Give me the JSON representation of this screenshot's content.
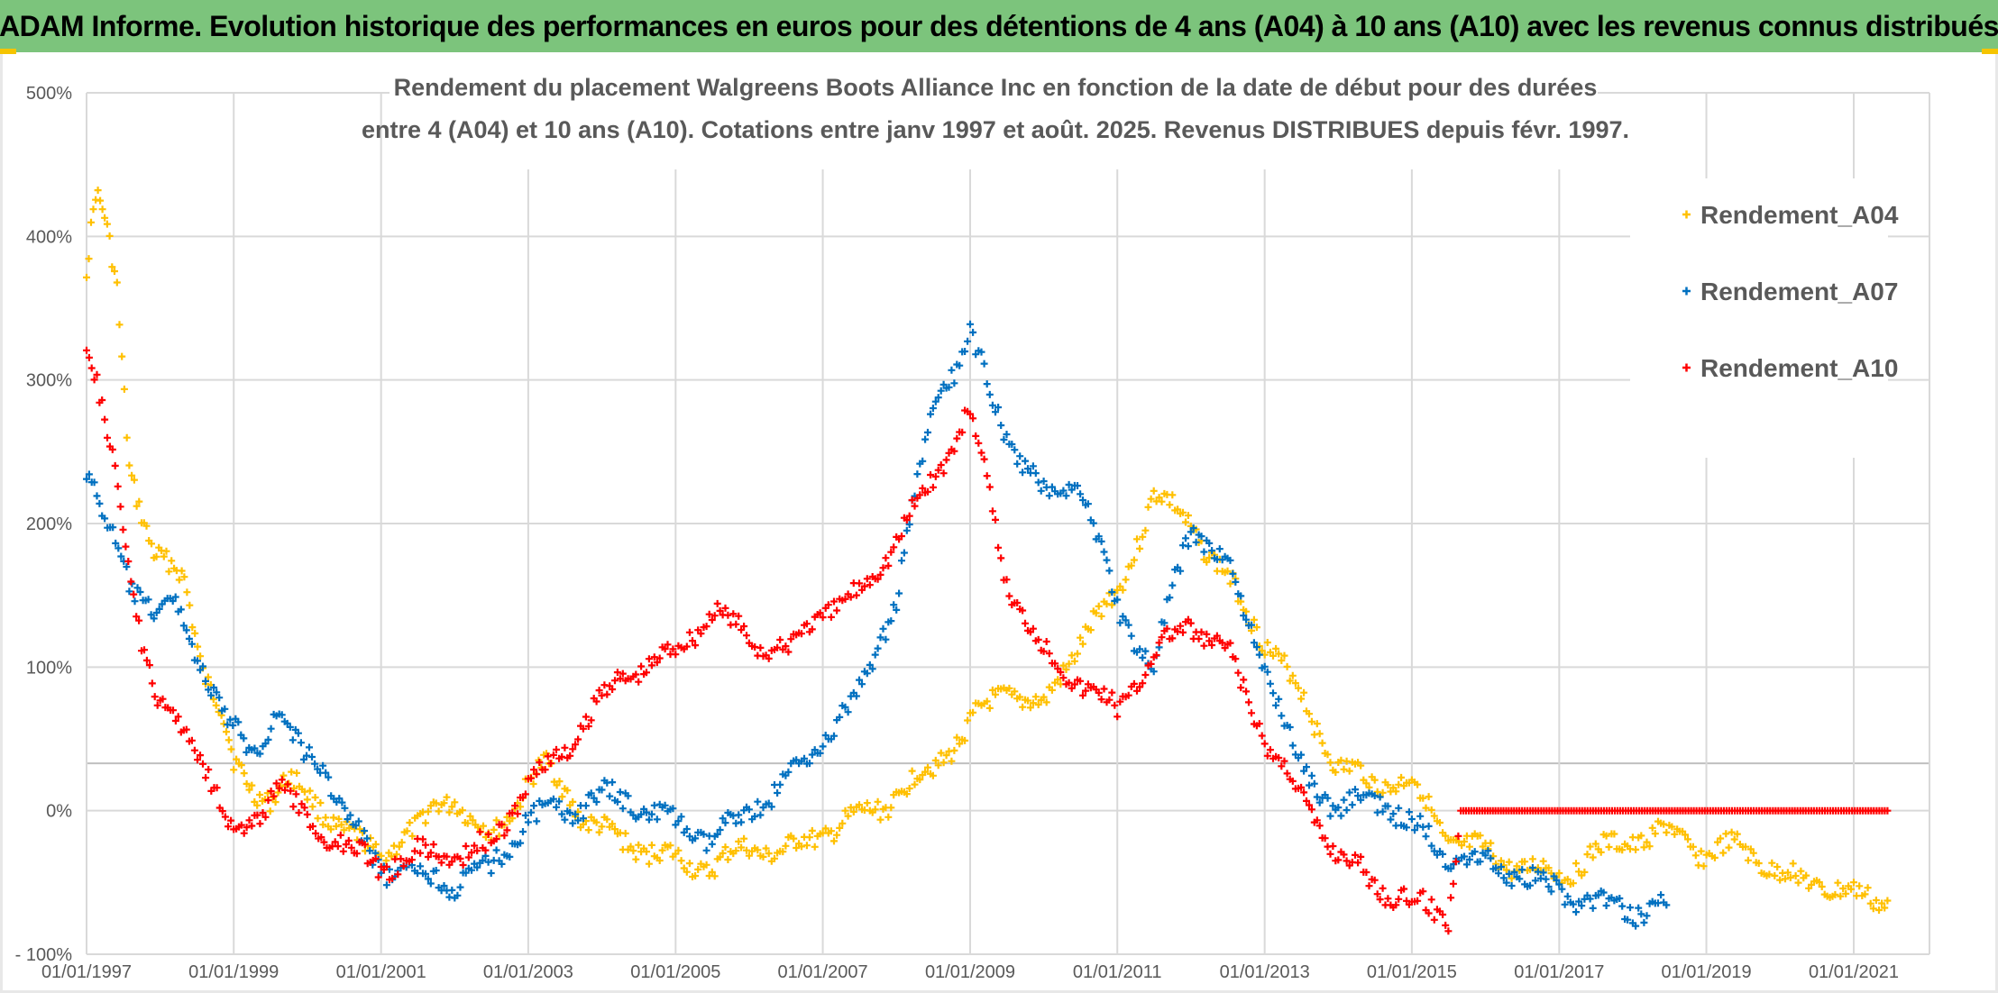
{
  "banner": {
    "title": "ADAM Informe. Evolution historique des performances en euros pour des détentions de 4 ans (A04) à 10 ans (A10) avec les revenus connus distribués"
  },
  "colors": {
    "banner": "#7cc47c",
    "A04": "#ffc000",
    "A07": "#0070c0",
    "A10": "#ff0000",
    "grid": "#d9d9d9",
    "text": "#595959"
  },
  "chart_data": {
    "type": "scatter",
    "title_lines": [
      "Rendement du placement Walgreens Boots Alliance Inc en fonction de la date de début pour des durées",
      "entre 4 (A04) et 10 ans (A10). Cotations entre janv 1997 et août. 2025. Revenus DISTRIBUES depuis févr. 1997."
    ],
    "marker": "+",
    "legend_position": "top-right",
    "grid": true,
    "y_unit": "%",
    "ylim": [
      -100,
      500
    ],
    "y_ticks": [
      500,
      400,
      300,
      200,
      100,
      0,
      -100
    ],
    "y_tick_labels": [
      "500%",
      "400%",
      "300%",
      "200%",
      "100%",
      "0%",
      "- 100%"
    ],
    "x_ticks": [
      "01/01/1997",
      "01/01/1999",
      "01/01/2001",
      "01/01/2003",
      "01/01/2005",
      "01/01/2007",
      "01/01/2009",
      "01/01/2011",
      "01/01/2013",
      "01/01/2015",
      "01/01/2017",
      "01/01/2019",
      "01/01/2021"
    ],
    "xlim": [
      "1997-01-01",
      "2022-01-01"
    ],
    "series": [
      {
        "name": "Rendement_A04",
        "color": "#ffc000",
        "points": [
          [
            "1997-01-01",
            380
          ],
          [
            "1997-02-15",
            430
          ],
          [
            "1997-04-01",
            410
          ],
          [
            "1997-06-01",
            360
          ],
          [
            "1997-08-01",
            240
          ],
          [
            "1997-10-01",
            210
          ],
          [
            "1997-12-01",
            180
          ],
          [
            "1998-02-01",
            170
          ],
          [
            "1998-05-01",
            160
          ],
          [
            "1998-08-01",
            100
          ],
          [
            "1998-11-01",
            70
          ],
          [
            "1999-01-01",
            30
          ],
          [
            "1999-04-01",
            15
          ],
          [
            "1999-07-01",
            10
          ],
          [
            "1999-10-01",
            20
          ],
          [
            "2000-01-01",
            10
          ],
          [
            "2000-04-01",
            0
          ],
          [
            "2000-07-01",
            -15
          ],
          [
            "2000-10-01",
            -25
          ],
          [
            "2001-01-01",
            -30
          ],
          [
            "2001-04-01",
            -20
          ],
          [
            "2001-07-01",
            -15
          ],
          [
            "2001-10-01",
            5
          ],
          [
            "2002-01-01",
            10
          ],
          [
            "2002-04-01",
            -10
          ],
          [
            "2002-07-01",
            -20
          ],
          [
            "2002-10-01",
            0
          ],
          [
            "2003-01-01",
            20
          ],
          [
            "2003-04-01",
            30
          ],
          [
            "2003-07-01",
            15
          ],
          [
            "2003-10-01",
            -5
          ],
          [
            "2004-01-01",
            -15
          ],
          [
            "2004-07-01",
            -25
          ],
          [
            "2005-01-01",
            -35
          ],
          [
            "2005-07-01",
            -40
          ],
          [
            "2006-01-01",
            -25
          ],
          [
            "2006-07-01",
            -30
          ],
          [
            "2007-01-01",
            -15
          ],
          [
            "2007-07-01",
            -5
          ],
          [
            "2008-01-01",
            10
          ],
          [
            "2008-07-01",
            30
          ],
          [
            "2009-01-01",
            60
          ],
          [
            "2009-07-01",
            85
          ],
          [
            "2010-01-01",
            70
          ],
          [
            "2010-07-01",
            120
          ],
          [
            "2011-01-01",
            150
          ],
          [
            "2011-07-01",
            220
          ],
          [
            "2012-01-01",
            200
          ],
          [
            "2012-07-01",
            160
          ],
          [
            "2013-01-01",
            120
          ],
          [
            "2013-07-01",
            80
          ],
          [
            "2014-01-01",
            30
          ],
          [
            "2014-07-01",
            20
          ],
          [
            "2015-01-01",
            20
          ],
          [
            "2015-07-01",
            -20
          ],
          [
            "2016-01-01",
            -30
          ],
          [
            "2016-07-01",
            -40
          ],
          [
            "2017-01-01",
            -45
          ],
          [
            "2017-07-01",
            -30
          ],
          [
            "2018-01-01",
            -20
          ],
          [
            "2018-07-01",
            -15
          ],
          [
            "2019-01-01",
            -30
          ],
          [
            "2019-07-01",
            -25
          ],
          [
            "2020-01-01",
            -45
          ],
          [
            "2020-07-01",
            -50
          ],
          [
            "2021-01-01",
            -60
          ],
          [
            "2021-07-01",
            -62
          ]
        ]
      },
      {
        "name": "Rendement_A07",
        "color": "#0070c0",
        "points": [
          [
            "1997-01-01",
            240
          ],
          [
            "1997-04-01",
            200
          ],
          [
            "1997-08-01",
            160
          ],
          [
            "1997-12-01",
            140
          ],
          [
            "1998-04-01",
            140
          ],
          [
            "1998-08-01",
            100
          ],
          [
            "1998-12-01",
            60
          ],
          [
            "1999-04-01",
            40
          ],
          [
            "1999-08-01",
            70
          ],
          [
            "1999-12-01",
            40
          ],
          [
            "2000-04-01",
            30
          ],
          [
            "2000-08-01",
            -10
          ],
          [
            "2001-01-01",
            -40
          ],
          [
            "2001-07-01",
            -45
          ],
          [
            "2002-01-01",
            -50
          ],
          [
            "2002-07-01",
            -40
          ],
          [
            "2003-01-01",
            -5
          ],
          [
            "2003-07-01",
            0
          ],
          [
            "2004-01-01",
            10
          ],
          [
            "2004-07-01",
            5
          ],
          [
            "2005-01-01",
            -10
          ],
          [
            "2005-07-01",
            -20
          ],
          [
            "2006-01-01",
            0
          ],
          [
            "2006-07-01",
            20
          ],
          [
            "2007-01-01",
            50
          ],
          [
            "2007-07-01",
            80
          ],
          [
            "2008-01-01",
            150
          ],
          [
            "2008-07-01",
            280
          ],
          [
            "2009-01-01",
            330
          ],
          [
            "2009-07-01",
            260
          ],
          [
            "2010-01-01",
            220
          ],
          [
            "2010-07-01",
            230
          ],
          [
            "2011-01-01",
            140
          ],
          [
            "2011-07-01",
            100
          ],
          [
            "2012-01-01",
            200
          ],
          [
            "2012-07-01",
            170
          ],
          [
            "2013-01-01",
            100
          ],
          [
            "2013-07-01",
            30
          ],
          [
            "2014-01-01",
            0
          ],
          [
            "2014-07-01",
            10
          ],
          [
            "2015-01-01",
            -10
          ],
          [
            "2015-07-01",
            -30
          ],
          [
            "2016-01-01",
            -35
          ],
          [
            "2016-07-01",
            -45
          ],
          [
            "2017-01-01",
            -55
          ],
          [
            "2017-07-01",
            -65
          ],
          [
            "2018-01-01",
            -70
          ],
          [
            "2018-07-01",
            -65
          ]
        ]
      },
      {
        "name": "Rendement_A10",
        "color": "#ff0000",
        "points": [
          [
            "1997-01-01",
            330
          ],
          [
            "1997-04-01",
            270
          ],
          [
            "1997-07-01",
            200
          ],
          [
            "1997-10-01",
            120
          ],
          [
            "1998-01-01",
            70
          ],
          [
            "1998-04-01",
            60
          ],
          [
            "1998-08-01",
            40
          ],
          [
            "1999-01-01",
            -20
          ],
          [
            "1999-04-01",
            -10
          ],
          [
            "1999-08-01",
            20
          ],
          [
            "2000-01-01",
            -10
          ],
          [
            "2000-06-01",
            -20
          ],
          [
            "2001-01-01",
            -40
          ],
          [
            "2001-07-01",
            -30
          ],
          [
            "2002-01-01",
            -30
          ],
          [
            "2002-07-01",
            -25
          ],
          [
            "2003-01-01",
            20
          ],
          [
            "2003-07-01",
            40
          ],
          [
            "2004-01-01",
            80
          ],
          [
            "2004-07-01",
            100
          ],
          [
            "2005-01-01",
            110
          ],
          [
            "2005-07-01",
            140
          ],
          [
            "2006-01-01",
            120
          ],
          [
            "2006-07-01",
            110
          ],
          [
            "2007-01-01",
            140
          ],
          [
            "2007-07-01",
            150
          ],
          [
            "2008-01-01",
            190
          ],
          [
            "2008-07-01",
            230
          ],
          [
            "2009-01-01",
            280
          ],
          [
            "2009-07-01",
            160
          ],
          [
            "2010-01-01",
            110
          ],
          [
            "2010-07-01",
            90
          ],
          [
            "2011-01-01",
            70
          ],
          [
            "2011-07-01",
            110
          ],
          [
            "2012-01-01",
            130
          ],
          [
            "2012-07-01",
            110
          ],
          [
            "2013-01-01",
            50
          ],
          [
            "2013-07-01",
            10
          ],
          [
            "2014-01-01",
            -30
          ],
          [
            "2014-07-01",
            -50
          ],
          [
            "2015-01-01",
            -65
          ],
          [
            "2015-07-01",
            -72
          ],
          [
            "2015-09-01",
            0
          ],
          [
            "2016-07-01",
            0
          ],
          [
            "2017-07-01",
            0
          ],
          [
            "2018-07-01",
            0
          ],
          [
            "2019-07-01",
            0
          ],
          [
            "2020-07-01",
            0
          ],
          [
            "2021-07-01",
            0
          ]
        ]
      }
    ]
  }
}
